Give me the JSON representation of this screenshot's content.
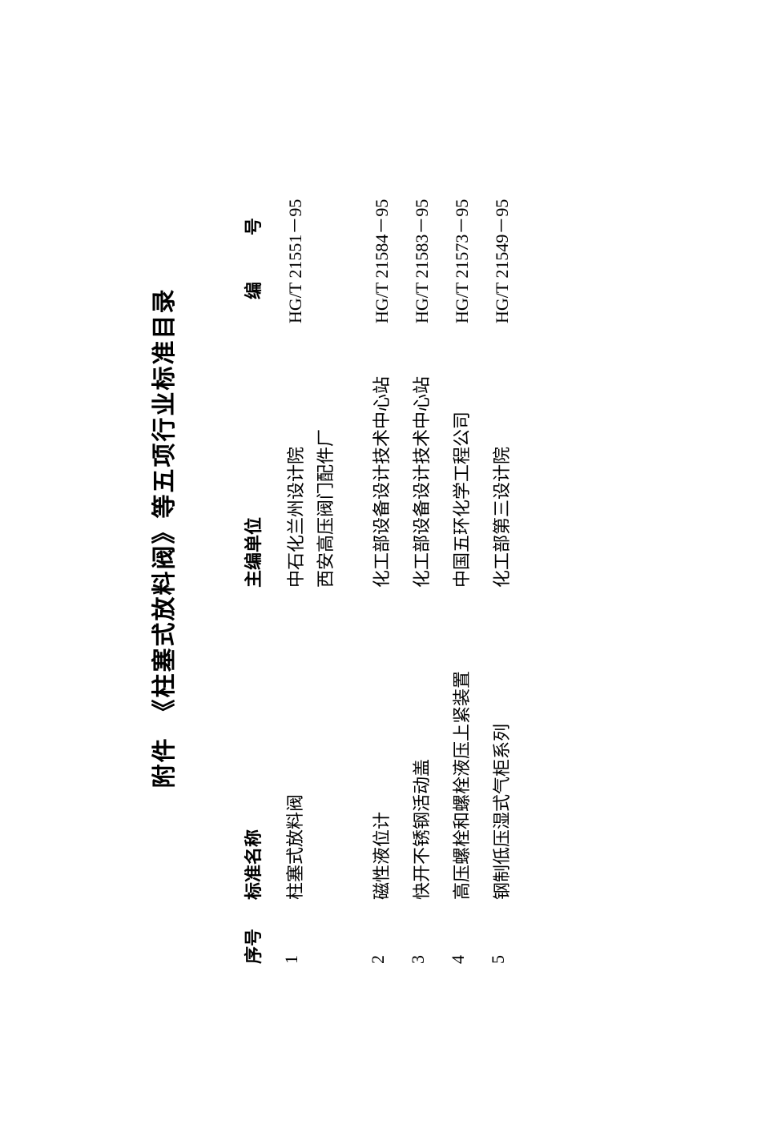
{
  "title": "附件　《柱塞式放料阀》等五项行业标准目录",
  "headers": {
    "seq": "序号",
    "name": "标准名称",
    "editor": "主编单位",
    "code": "编　号"
  },
  "rows": [
    {
      "seq": "1",
      "name": "柱塞式放料阀",
      "editor_line1": "中石化兰州设计院",
      "editor_line2": "西安高压阀门配件厂",
      "code": "HG/T 21551－95"
    },
    {
      "seq": "2",
      "name": "磁性液位计",
      "editor_line1": "化工部设备设计技术中心站",
      "editor_line2": "",
      "code": "HG/T 21584－95"
    },
    {
      "seq": "3",
      "name": "快开不锈钢活动盖",
      "editor_line1": "化工部设备设计技术中心站",
      "editor_line2": "",
      "code": "HG/T 21583－95"
    },
    {
      "seq": "4",
      "name": "高压螺栓和螺栓液压上紧装置",
      "editor_line1": "中国五环化学工程公司",
      "editor_line2": "",
      "code": "HG/T 21573－95"
    },
    {
      "seq": "5",
      "name": "钢制低压湿式气柜系列",
      "editor_line1": "化工部第三设计院",
      "editor_line2": "",
      "code": "HG/T 21549－95"
    }
  ]
}
